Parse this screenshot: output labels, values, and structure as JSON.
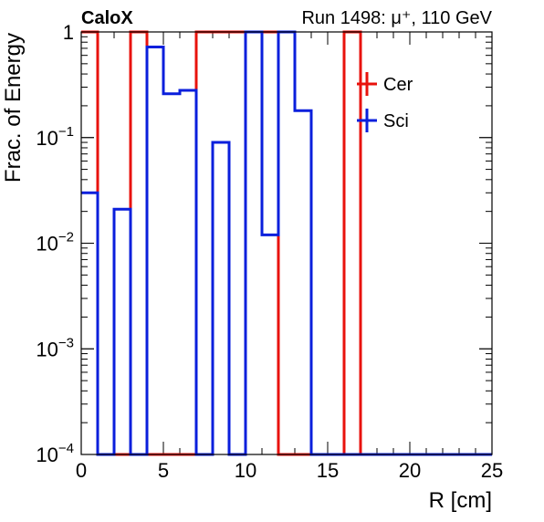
{
  "header": {
    "experiment": "CaloX",
    "run_info": "Run 1498: μ⁺, 110 GeV"
  },
  "chart_data": {
    "type": "histogram",
    "xlabel": "R [cm]",
    "ylabel": "Frac. of Energy",
    "xlim": [
      0,
      25
    ],
    "ylim": [
      0.0001,
      1
    ],
    "log_y": true,
    "grid": false,
    "legend_position": "top-right",
    "x_tick_labels": [
      "0",
      "5",
      "10",
      "15",
      "20",
      "25"
    ],
    "y_tick_labels": [
      {
        "value": 0.0001,
        "base": "10",
        "exp": "−4"
      },
      {
        "value": 0.001,
        "base": "10",
        "exp": "−3"
      },
      {
        "value": 0.01,
        "base": "10",
        "exp": "−2"
      },
      {
        "value": 0.1,
        "base": "10",
        "exp": "−1"
      },
      {
        "value": 1,
        "base": "1",
        "exp": ""
      }
    ],
    "bin_edges": [
      0,
      1,
      2,
      3,
      4,
      5,
      6,
      7,
      8,
      9,
      10,
      11,
      12,
      13,
      14,
      15,
      16,
      17,
      18,
      19,
      20,
      21,
      22,
      23,
      24,
      25
    ],
    "series": [
      {
        "name": "Cer",
        "color": "#e8120c",
        "values": [
          1.0,
          0.0001,
          0.0001,
          1.0,
          0.0001,
          0.0001,
          0.0001,
          1.0,
          1.0,
          1.0,
          1.0,
          1.0,
          0.0001,
          0.0001,
          0.0001,
          0.0001,
          1.0,
          0.0001,
          0.0001,
          0.0001,
          0.0001,
          0.0001,
          0.0001,
          0.0001,
          0.0001
        ]
      },
      {
        "name": "Sci",
        "color": "#0a1fdc",
        "values": [
          0.03,
          0.0001,
          0.021,
          0.0001,
          0.72,
          0.26,
          0.28,
          0.0001,
          0.09,
          0.0001,
          1.0,
          0.012,
          1.0,
          0.18,
          0.0001,
          0.0001,
          0.0001,
          0.0001,
          0.0001,
          0.0001,
          0.0001,
          0.0001,
          0.0001,
          0.0001,
          0.0001
        ]
      }
    ]
  }
}
